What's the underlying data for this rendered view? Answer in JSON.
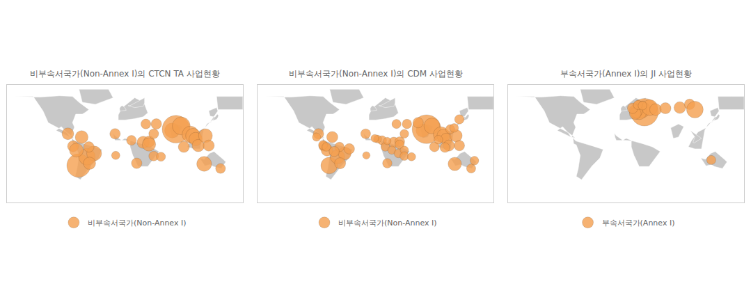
{
  "chart_data": [
    {
      "type": "scatter",
      "title": "비부속서국가(Non-Annex I)의 CTCN TA 사업현황",
      "xlim": [
        -180,
        180
      ],
      "ylim": [
        -90,
        90
      ],
      "tick_labels": false,
      "grid": false,
      "legend": "bottom",
      "series": [
        {
          "name": "비부속서국가(Non-Annex I)",
          "color": "#F5A050",
          "x": [
            -70.7,
            -58.0,
            -47.0,
            -66.0,
            -87.0,
            -15.0,
            10.0,
            28.0,
            37.0,
            36.8,
            72.0,
            78.0,
            86.0,
            100.0,
            104.0,
            108.0,
            112.0,
            123.0,
            128.0,
            146.0,
            -14.0,
            18.0,
            44.0,
            55.0,
            121.0,
            90.0,
            44.0,
            -79.0,
            -74.0,
            -54.0,
            -55.0,
            32.0,
            48.0
          ],
          "values": [
            -33.5,
            -20.0,
            -15.0,
            10.0,
            15.0,
            15.0,
            5.0,
            2.0,
            3.0,
            -1.3,
            20.0,
            22.0,
            27.0,
            14.0,
            12.0,
            7.0,
            -3.0,
            12.0,
            -3.0,
            -38.0,
            -18.0,
            -30.0,
            -19.0,
            -20.0,
            -31.0,
            -5.0,
            15.0,
            -4.0,
            -10.0,
            -30.0,
            -5.0,
            30.0,
            30.0
          ],
          "sizes": [
            400,
            200,
            160,
            120,
            100,
            80,
            70,
            110,
            90,
            130,
            160,
            550,
            230,
            200,
            160,
            130,
            110,
            140,
            90,
            70,
            50,
            80,
            70,
            60,
            160,
            90,
            70,
            90,
            140,
            110,
            80,
            70,
            80
          ]
        }
      ]
    },
    {
      "type": "scatter",
      "title": "비부속서국가(Non-Annex I)의 CDM 사업현황",
      "xlim": [
        -180,
        180
      ],
      "ylim": [
        -90,
        90
      ],
      "tick_labels": false,
      "grid": false,
      "legend": "bottom",
      "series": [
        {
          "name": "비부속서국가(Non-Annex I)",
          "color": "#F5A050",
          "x": [
            -70.7,
            -58.0,
            -47.0,
            -66.0,
            -87.0,
            -15.0,
            10.0,
            28.0,
            37.0,
            36.8,
            15.0,
            25.0,
            35.0,
            44.0,
            72.0,
            78.0,
            86.0,
            100.0,
            104.0,
            108.0,
            112.0,
            123.0,
            128.0,
            146.0,
            -14.0,
            18.0,
            44.0,
            55.0,
            121.0,
            90.0,
            44.0,
            -79.0,
            -74.0,
            -54.0,
            -55.0,
            32.0,
            48.0,
            65.0,
            -90.0,
            106.0,
            96.0,
            151.0,
            -80.0,
            3.0,
            -1.0,
            18.0,
            -75.0,
            -63.0,
            -40.0,
            114.0,
            120.0,
            128.0
          ],
          "values": [
            -33.5,
            -20.0,
            -15.0,
            10.0,
            15.0,
            15.0,
            5.0,
            2.0,
            3.0,
            -1.3,
            -5.0,
            -10.0,
            -15.0,
            -10.0,
            20.0,
            22.0,
            27.0,
            14.0,
            12.0,
            7.0,
            -3.0,
            12.0,
            -3.0,
            -38.0,
            -18.0,
            -30.0,
            -19.0,
            -20.0,
            -31.0,
            -5.0,
            15.0,
            -4.0,
            -10.0,
            -30.0,
            -5.0,
            30.0,
            30.0,
            32.0,
            10.0,
            -6.0,
            6.0,
            -26.0,
            -2.0,
            7.0,
            8.0,
            4.0,
            -5.0,
            -12.0,
            -8.0,
            22.0,
            24.0,
            37.0
          ],
          "sizes": [
            200,
            150,
            120,
            90,
            80,
            70,
            60,
            80,
            70,
            60,
            55,
            50,
            55,
            50,
            130,
            600,
            180,
            170,
            130,
            100,
            90,
            110,
            80,
            60,
            40,
            65,
            55,
            50,
            130,
            70,
            55,
            70,
            100,
            90,
            65,
            60,
            65,
            80,
            50,
            70,
            55,
            55,
            60,
            45,
            45,
            40,
            55,
            75,
            80,
            60,
            55,
            65
          ]
        }
      ]
    },
    {
      "type": "scatter",
      "title": "부속서국가(Annex I)의 JI 사업현황",
      "xlim": [
        -180,
        180
      ],
      "ylim": [
        -90,
        90
      ],
      "tick_labels": false,
      "grid": false,
      "legend": "bottom",
      "series": [
        {
          "name": "부속서국가(Annex I)",
          "color": "#F5A050",
          "x": [
            28.0,
            24.0,
            20.0,
            15.0,
            14.0,
            36.0,
            45.0,
            60.0,
            82.0,
            97.0,
            105.0,
            10.0,
            18.0,
            25.0,
            130.0
          ],
          "values": [
            48.0,
            52.0,
            48.0,
            50.0,
            46.0,
            55.0,
            52.0,
            54.0,
            55.0,
            60.0,
            52.0,
            54.0,
            59.0,
            58.0,
            -25.0
          ],
          "sizes": [
            550,
            200,
            160,
            130,
            100,
            180,
            100,
            90,
            100,
            80,
            200,
            80,
            60,
            55,
            60
          ]
        }
      ]
    }
  ]
}
